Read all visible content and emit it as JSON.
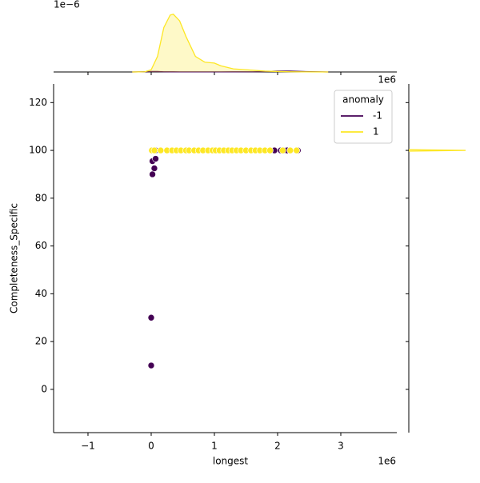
{
  "chart_data": [
    {
      "type": "scatter",
      "x_label": "longest",
      "y_label": "Completeness_Specific",
      "x_offset_label": "1e6",
      "legend_title": "anomaly",
      "legend": "upper right",
      "xlim": [
        -1.544,
        3.886
      ],
      "xticks": [
        {
          "value": -1,
          "label": "−1"
        },
        0,
        1,
        2,
        3
      ],
      "ylim": [
        -18.1,
        127.8
      ],
      "yticks": [
        0,
        20,
        40,
        60,
        80,
        100,
        120
      ],
      "series": [
        {
          "name": "-1",
          "color": "#440154",
          "x": [
            0.07,
            0.02,
            0.07,
            0.05,
            0.02,
            0.0,
            0.0,
            1.95,
            2.05,
            2.1,
            2.15,
            2.2,
            2.3,
            2.32
          ],
          "values": [
            100,
            95.5,
            96.5,
            92.5,
            90,
            30,
            10,
            100,
            100,
            100,
            100,
            100,
            100,
            100
          ]
        },
        {
          "name": "1",
          "color": "#fde725",
          "x": [
            0.01,
            0.05,
            0.15,
            0.25,
            0.33,
            0.4,
            0.47,
            0.55,
            0.6,
            0.68,
            0.75,
            0.82,
            0.9,
            0.97,
            1.02,
            1.08,
            1.15,
            1.22,
            1.28,
            1.35,
            1.42,
            1.5,
            1.58,
            1.65,
            1.72,
            1.8,
            1.88,
            2.08,
            2.2,
            2.3
          ],
          "values": [
            100,
            100,
            100,
            100,
            100,
            100,
            100,
            100,
            100,
            100,
            100,
            100,
            100,
            100,
            100,
            100,
            100,
            100,
            100,
            100,
            100,
            100,
            100,
            100,
            100,
            100,
            100,
            100,
            100,
            100
          ]
        }
      ]
    },
    {
      "type": "area",
      "y_offset_label": "1e−6",
      "ylim": [
        0,
        1.53
      ],
      "x": [
        -0.3,
        -0.1,
        0.0,
        0.1,
        0.2,
        0.3,
        0.35,
        0.45,
        0.55,
        0.7,
        0.85,
        1.0,
        1.1,
        1.3,
        1.6,
        1.8,
        2.0,
        2.2,
        2.4,
        2.8
      ],
      "series": [
        {
          "color": "#440154",
          "values": [
            0,
            0.005,
            0.01,
            0.01,
            0.005,
            0.003,
            0.003,
            0.002,
            0.002,
            0.002,
            0.002,
            0.002,
            0.002,
            0.003,
            0.005,
            0.01,
            0.02,
            0.02,
            0.01,
            0
          ]
        },
        {
          "color": "#fde725",
          "values": [
            0,
            0.005,
            0.05,
            0.35,
            1.0,
            1.28,
            1.3,
            1.15,
            0.8,
            0.35,
            0.22,
            0.2,
            0.14,
            0.07,
            0.04,
            0.02,
            0.01,
            0.005,
            0.002,
            0
          ]
        }
      ]
    },
    {
      "type": "area-h",
      "xlim": [
        0,
        1.0
      ],
      "y": [
        99.7,
        100,
        100.3
      ],
      "series": [
        {
          "color": "#fde725",
          "values": [
            0,
            1.0,
            0
          ]
        }
      ]
    }
  ]
}
